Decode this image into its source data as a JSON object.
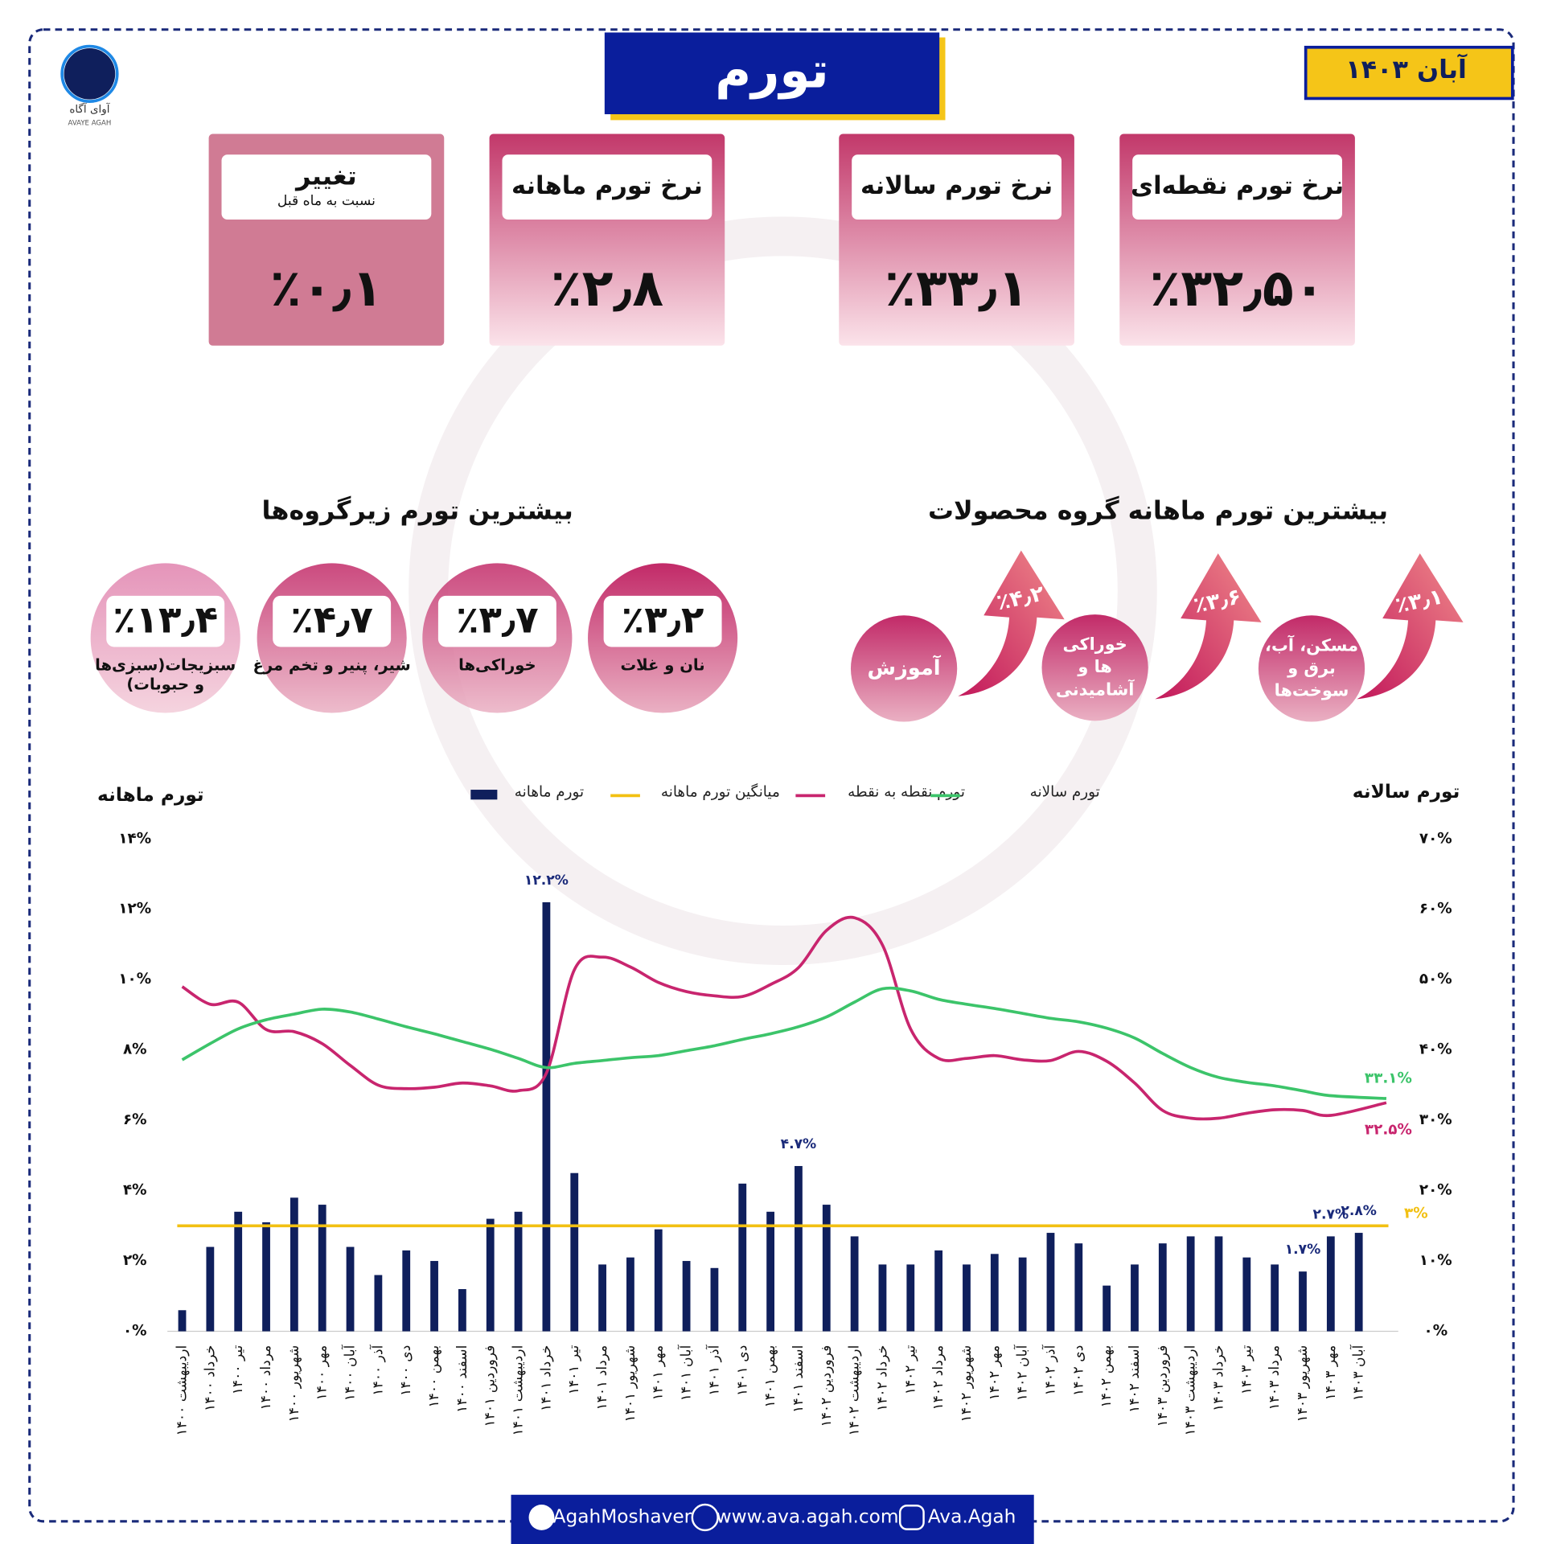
{
  "header": {
    "title": "تورم",
    "date": "آبان ۱۴۰۳",
    "logo_name": "آوای آگاه",
    "logo_latin": "AVAYE AGAH"
  },
  "cards": [
    {
      "title": "نرخ تورم نقطه‌ای",
      "value": "٪۳۲٫۵۰"
    },
    {
      "title": "نرخ تورم سالانه",
      "value": "٪۳۳٫۱"
    },
    {
      "title": "نرخ تورم ماهانه",
      "value": "٪۲٫۸"
    },
    {
      "title": "تغییر",
      "subtitle": "نسبت به ماه قبل",
      "value": "٪۰٫۱"
    }
  ],
  "products": {
    "title": "بیشترین تورم ماهانه گروه محصولات",
    "items": [
      {
        "lines": [
          "مسکن، آب،",
          "برق و",
          "سوخت‌ها"
        ],
        "value": "٪۳٫۱۰"
      },
      {
        "lines": [
          "خوراکی",
          "ها و",
          "آشامیدنی"
        ],
        "value": "٪۳٫۶۰"
      },
      {
        "lines": [
          "آموزش"
        ],
        "value": "٪۴٫۲۰"
      }
    ]
  },
  "subgroups": {
    "title": "بیشترین تورم زیرگروه‌ها",
    "items": [
      {
        "lines": [
          "نان و غلات"
        ],
        "value": "٪۳٫۲"
      },
      {
        "lines": [
          "خوراکی‌ها"
        ],
        "value": "٪۳٫۷"
      },
      {
        "lines": [
          "شیر، پنیر و تخم مرغ"
        ],
        "value": "٪۴٫۷"
      },
      {
        "lines": [
          "سبزیجات(سبزی‌ها",
          "و حبوبات)"
        ],
        "value": "٪۱۳٫۴"
      }
    ]
  },
  "chart_data": {
    "type": "bar-line",
    "ylabel": "تورم ماهانه",
    "y2label": "تورم سالانه",
    "categories": [
      "اردیبهشت ۱۴۰۰",
      "خرداد ۱۴۰۰",
      "تیر ۱۴۰۰",
      "مرداد ۱۴۰۰",
      "شهریور ۱۴۰۰",
      "مهر ۱۴۰۰",
      "آبان ۱۴۰۰",
      "آذر ۱۴۰۰",
      "دی ۱۴۰۰",
      "بهمن ۱۴۰۰",
      "اسفند ۱۴۰۰",
      "فروردین ۱۴۰۱",
      "اردیبهشت ۱۴۰۱",
      "خرداد ۱۴۰۱",
      "تیر ۱۴۰۱",
      "مرداد ۱۴۰۱",
      "شهریور ۱۴۰۱",
      "مهر ۱۴۰۱",
      "آبان ۱۴۰۱",
      "آذر ۱۴۰۱",
      "دی ۱۴۰۱",
      "بهمن ۱۴۰۱",
      "اسفند ۱۴۰۱",
      "فروردین ۱۴۰۲",
      "اردیبهشت ۱۴۰۲",
      "خرداد ۱۴۰۲",
      "تیر ۱۴۰۲",
      "مرداد ۱۴۰۲",
      "شهریور ۱۴۰۲",
      "مهر ۱۴۰۲",
      "آبان ۱۴۰۲",
      "آذر ۱۴۰۲",
      "دی ۱۴۰۲",
      "بهمن ۱۴۰۲",
      "اسفند ۱۴۰۲",
      "فروردین ۱۴۰۳",
      "اردیبهشت ۱۴۰۳",
      "خرداد ۱۴۰۳",
      "تیر ۱۴۰۳",
      "مرداد ۱۴۰۳",
      "شهریور ۱۴۰۳",
      "مهر ۱۴۰۳",
      "آبان ۱۴۰۳"
    ],
    "series": [
      {
        "name": "تورم ماهانه",
        "type": "bar",
        "color": "#0f1f5c",
        "values": [
          0.6,
          2.4,
          3.4,
          3.1,
          3.8,
          3.6,
          2.4,
          1.6,
          2.3,
          2.0,
          1.2,
          3.2,
          3.4,
          12.2,
          4.5,
          1.9,
          2.1,
          2.9,
          2.0,
          1.8,
          4.2,
          3.4,
          4.7,
          3.6,
          2.7,
          1.9,
          1.9,
          2.3,
          1.9,
          2.2,
          2.1,
          2.8,
          2.5,
          1.3,
          1.9,
          2.5,
          2.7,
          2.7,
          2.1,
          1.9,
          1.7,
          2.7,
          2.8
        ],
        "value_labels": [
          null,
          null,
          null,
          null,
          null,
          null,
          null,
          null,
          null,
          null,
          null,
          null,
          null,
          "۱۲.۲%",
          null,
          null,
          null,
          null,
          null,
          null,
          null,
          null,
          "۴.۷%",
          null,
          null,
          null,
          null,
          null,
          null,
          null,
          null,
          null,
          null,
          null,
          null,
          null,
          null,
          null,
          null,
          null,
          "۱.۷%",
          "۲.۷%",
          "۲.۸%"
        ]
      },
      {
        "name": "تورم نقطه به نقطه",
        "type": "line",
        "axis": "y2",
        "color": "#c8256e",
        "values": [
          49.0,
          46.5,
          46.8,
          42.9,
          42.6,
          40.9,
          37.8,
          35.0,
          34.5,
          34.7,
          35.3,
          34.9,
          34.2,
          36.7,
          51.4,
          53.2,
          51.8,
          49.6,
          48.3,
          47.7,
          47.6,
          49.3,
          51.7,
          57.0,
          58.8,
          54.9,
          43.0,
          38.8,
          38.8,
          39.2,
          38.6,
          38.5,
          39.8,
          38.4,
          35.3,
          31.4,
          30.3,
          30.3,
          31.0,
          31.5,
          31.4,
          30.7,
          32.5
        ],
        "value_labels": [
          null,
          null,
          null,
          null,
          null,
          null,
          null,
          null,
          null,
          null,
          null,
          null,
          null,
          null,
          null,
          null,
          null,
          null,
          null,
          null,
          null,
          null,
          null,
          null,
          null,
          null,
          null,
          null,
          null,
          null,
          null,
          null,
          null,
          null,
          null,
          null,
          null,
          null,
          null,
          null,
          null,
          null,
          "۳۲.۵%"
        ]
      },
      {
        "name": "تورم سالانه",
        "type": "line",
        "axis": "y2",
        "color": "#3cc46a",
        "values": [
          38.6,
          40.9,
          43.0,
          44.3,
          45.1,
          45.8,
          45.4,
          44.4,
          43.3,
          42.3,
          41.2,
          40.1,
          38.8,
          37.5,
          38.1,
          38.5,
          38.9,
          39.2,
          39.9,
          40.6,
          41.5,
          42.3,
          43.3,
          44.7,
          46.8,
          48.7,
          48.4,
          47.2,
          46.5,
          45.9,
          45.2,
          44.5,
          44.0,
          43.1,
          41.7,
          39.5,
          37.5,
          36.1,
          35.4,
          34.9,
          34.2,
          33.5,
          33.1
        ],
        "value_labels": [
          null,
          null,
          null,
          null,
          null,
          null,
          null,
          null,
          null,
          null,
          null,
          null,
          null,
          null,
          null,
          null,
          null,
          null,
          null,
          null,
          null,
          null,
          null,
          null,
          null,
          null,
          null,
          null,
          null,
          null,
          null,
          null,
          null,
          null,
          null,
          null,
          null,
          null,
          null,
          null,
          null,
          null,
          "۳۳.۱%"
        ]
      }
    ],
    "average": {
      "name": "میانگین تورم ماهانه",
      "color": "#f2c012",
      "value": 3,
      "label": "۳%"
    },
    "ylim": [
      0,
      14
    ],
    "yticks": [
      {
        "value": 0,
        "label": "۰%"
      },
      {
        "value": 2,
        "label": "۲%"
      },
      {
        "value": 4,
        "label": "۴%"
      },
      {
        "value": 6,
        "label": "۶%"
      },
      {
        "value": 8,
        "label": "۸%"
      },
      {
        "value": 10,
        "label": "۱۰%"
      },
      {
        "value": 12,
        "label": "۱۲%"
      },
      {
        "value": 14,
        "label": "۱۴%"
      }
    ],
    "y2lim": [
      0,
      70
    ],
    "y2ticks": [
      {
        "value": 0,
        "label": "۰%"
      },
      {
        "value": 10,
        "label": "۱۰%"
      },
      {
        "value": 20,
        "label": "۲۰%"
      },
      {
        "value": 30,
        "label": "۳۰%"
      },
      {
        "value": 40,
        "label": "۴۰%"
      },
      {
        "value": 50,
        "label": "۵۰%"
      },
      {
        "value": 60,
        "label": "۶۰%"
      },
      {
        "value": 70,
        "label": "۷۰%"
      }
    ],
    "grid": false
  },
  "footer": {
    "telegram": "AgahMoshaver",
    "website": "www.ava.agah.com",
    "instagram": "Ava.Agah"
  }
}
